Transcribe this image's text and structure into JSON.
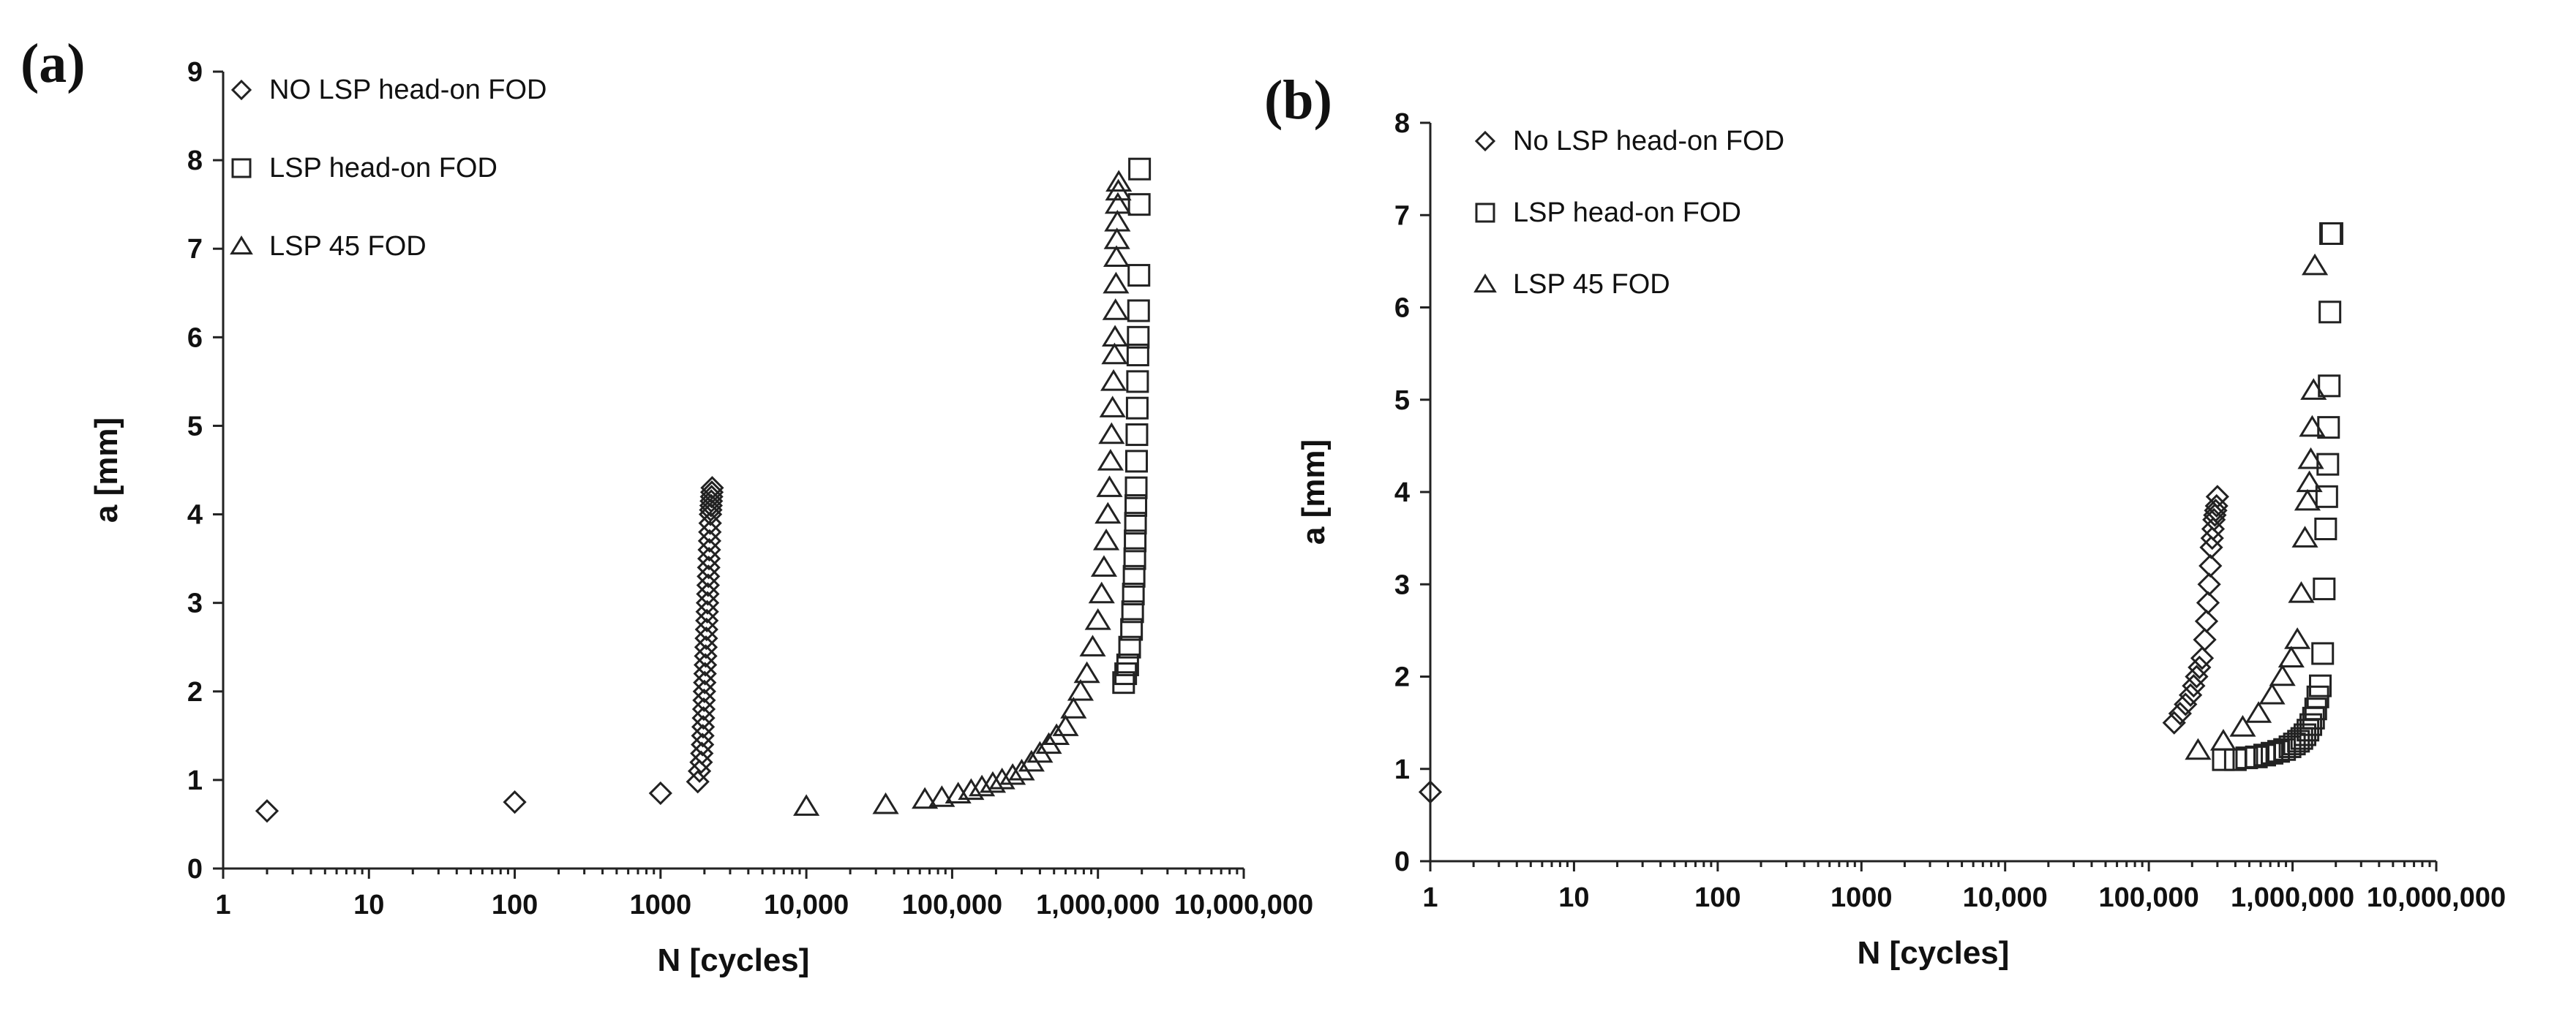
{
  "chart_data": [
    {
      "type": "scatter",
      "panel_label": "(a)",
      "xlabel": "N [cycles]",
      "ylabel": "a [mm]",
      "xscale": "log",
      "xlim": [
        1,
        10000000
      ],
      "ylim": [
        0,
        9
      ],
      "xtick_labels": [
        "1",
        "10",
        "100",
        "1000",
        "10,000",
        "100,000",
        "1,000,000",
        "10,000,000"
      ],
      "ytick_labels": [
        "0",
        "1",
        "2",
        "3",
        "4",
        "5",
        "6",
        "7",
        "8",
        "9"
      ],
      "legend_position": "top-left",
      "series": [
        {
          "name": "NO LSP head-on FOD",
          "marker": "diamond",
          "x": [
            2,
            100,
            1000,
            1800,
            1850,
            1900,
            1920,
            1940,
            1950,
            1960,
            1970,
            1980,
            1990,
            2000,
            2010,
            2020,
            2030,
            2040,
            2050,
            2060,
            2070,
            2080,
            2090,
            2100,
            2110,
            2120,
            2130,
            2140,
            2150,
            2160,
            2170,
            2180,
            2190,
            2200,
            2210,
            2220,
            2230,
            2240,
            2250,
            2260
          ],
          "y": [
            0.65,
            0.75,
            0.85,
            0.98,
            1.1,
            1.2,
            1.3,
            1.4,
            1.5,
            1.6,
            1.7,
            1.8,
            1.9,
            2.0,
            2.1,
            2.2,
            2.3,
            2.4,
            2.5,
            2.6,
            2.7,
            2.8,
            2.9,
            3.0,
            3.1,
            3.2,
            3.3,
            3.4,
            3.5,
            3.6,
            3.7,
            3.8,
            3.9,
            4.0,
            4.05,
            4.1,
            4.15,
            4.2,
            4.25,
            4.3
          ]
        },
        {
          "name": "LSP head-on FOD",
          "marker": "square",
          "x": [
            1500000,
            1550000,
            1600000,
            1650000,
            1700000,
            1730000,
            1750000,
            1770000,
            1790000,
            1800000,
            1810000,
            1820000,
            1830000,
            1840000,
            1850000,
            1860000,
            1870000,
            1880000,
            1890000,
            1900000,
            1910000,
            1920000,
            1930000
          ],
          "y": [
            2.1,
            2.2,
            2.3,
            2.5,
            2.7,
            2.9,
            3.1,
            3.3,
            3.5,
            3.7,
            3.9,
            4.1,
            4.3,
            4.6,
            4.9,
            5.2,
            5.5,
            5.8,
            6.0,
            6.3,
            6.7,
            7.5,
            7.9
          ]
        },
        {
          "name": "LSP 45 FOD",
          "marker": "triangle",
          "x": [
            10000,
            35000,
            65000,
            85000,
            110000,
            135000,
            160000,
            190000,
            220000,
            260000,
            300000,
            350000,
            400000,
            460000,
            520000,
            600000,
            680000,
            760000,
            840000,
            920000,
            1000000,
            1060000,
            1100000,
            1140000,
            1170000,
            1200000,
            1220000,
            1240000,
            1260000,
            1280000,
            1300000,
            1310000,
            1320000,
            1330000,
            1340000,
            1350000,
            1360000,
            1370000,
            1380000,
            1390000
          ],
          "y": [
            0.7,
            0.72,
            0.78,
            0.8,
            0.84,
            0.88,
            0.92,
            0.96,
            1.0,
            1.05,
            1.1,
            1.2,
            1.3,
            1.4,
            1.5,
            1.6,
            1.8,
            2.0,
            2.2,
            2.5,
            2.8,
            3.1,
            3.4,
            3.7,
            4.0,
            4.3,
            4.6,
            4.9,
            5.2,
            5.5,
            5.8,
            6.0,
            6.3,
            6.6,
            6.9,
            7.1,
            7.3,
            7.5,
            7.65,
            7.75
          ]
        }
      ]
    },
    {
      "type": "scatter",
      "panel_label": "(b)",
      "xlabel": "N [cycles]",
      "ylabel": "a [mm]",
      "xscale": "log",
      "xlim": [
        1,
        10000000
      ],
      "ylim": [
        0,
        8
      ],
      "xtick_labels": [
        "1",
        "10",
        "100",
        "1000",
        "10,000",
        "100,000",
        "1,000,000",
        "10,000,000"
      ],
      "ytick_labels": [
        "0",
        "1",
        "2",
        "3",
        "4",
        "5",
        "6",
        "7",
        "8"
      ],
      "legend_position": "top-left",
      "series": [
        {
          "name": "No LSP head-on FOD",
          "marker": "diamond",
          "x": [
            1,
            150000,
            165000,
            180000,
            195000,
            205000,
            215000,
            225000,
            235000,
            245000,
            252000,
            258000,
            263000,
            268000,
            272000,
            276000,
            280000,
            284000,
            288000,
            292000,
            296000,
            300000
          ],
          "y": [
            0.75,
            1.5,
            1.6,
            1.7,
            1.8,
            1.9,
            2.0,
            2.1,
            2.2,
            2.4,
            2.6,
            2.8,
            3.0,
            3.2,
            3.4,
            3.5,
            3.6,
            3.7,
            3.75,
            3.8,
            3.85,
            3.95
          ]
        },
        {
          "name": "LSP head-on FOD",
          "marker": "square",
          "x": [
            330000,
            400000,
            480000,
            560000,
            640000,
            720000,
            800000,
            880000,
            960000,
            1030000,
            1100000,
            1160000,
            1220000,
            1280000,
            1340000,
            1400000,
            1450000,
            1500000,
            1560000,
            1620000,
            1660000,
            1700000,
            1730000,
            1760000,
            1780000,
            1800000,
            1820000,
            1840000,
            1860000,
            1880000
          ],
          "y": [
            1.1,
            1.1,
            1.12,
            1.13,
            1.15,
            1.17,
            1.19,
            1.21,
            1.24,
            1.27,
            1.3,
            1.33,
            1.37,
            1.42,
            1.48,
            1.55,
            1.65,
            1.78,
            1.9,
            2.25,
            2.95,
            3.6,
            3.95,
            4.3,
            4.7,
            5.15,
            5.95,
            6.8,
            6.8,
            6.8
          ]
        },
        {
          "name": "LSP 45 FOD",
          "marker": "triangle",
          "x": [
            220000,
            330000,
            450000,
            580000,
            720000,
            850000,
            980000,
            1080000,
            1150000,
            1220000,
            1270000,
            1310000,
            1340000,
            1370000,
            1400000,
            1430000
          ],
          "y": [
            1.2,
            1.3,
            1.45,
            1.6,
            1.8,
            2.0,
            2.2,
            2.4,
            2.9,
            3.5,
            3.9,
            4.1,
            4.35,
            4.7,
            5.1,
            6.45
          ]
        }
      ]
    }
  ]
}
